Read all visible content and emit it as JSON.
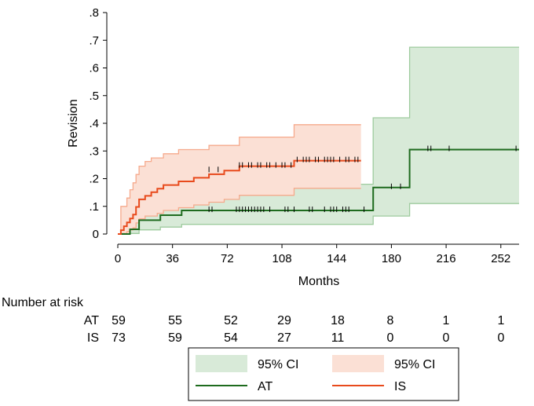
{
  "chart_data": {
    "type": "line",
    "subtype": "kaplan-meier-step",
    "ylabel": "Revision",
    "xlabel": "Months",
    "ylim": [
      0,
      0.8
    ],
    "xlim": [
      0,
      264
    ],
    "x_ticks": [
      0,
      36,
      72,
      108,
      144,
      180,
      216,
      252
    ],
    "y_ticks": [
      0,
      0.1,
      0.2,
      0.3,
      0.4,
      0.5,
      0.6,
      0.7,
      0.8
    ],
    "y_tick_labels": [
      "0",
      ".1",
      ".2",
      ".3",
      ".4",
      ".5",
      ".6",
      ".7",
      ".8"
    ],
    "series": [
      {
        "name": "AT",
        "color": "#1e6b1e",
        "ci_fill": "#d8ead8",
        "ci_line": "#9ecb9e",
        "estimate": [
          [
            0,
            0
          ],
          [
            8,
            0
          ],
          [
            8,
            0.017
          ],
          [
            14,
            0.017
          ],
          [
            14,
            0.05
          ],
          [
            28,
            0.05
          ],
          [
            28,
            0.068
          ],
          [
            42,
            0.068
          ],
          [
            42,
            0.085
          ],
          [
            168,
            0.085
          ],
          [
            168,
            0.168
          ],
          [
            192,
            0.168
          ],
          [
            192,
            0.305
          ],
          [
            264,
            0.305
          ]
        ],
        "ci_upper": [
          [
            0,
            0
          ],
          [
            8,
            0
          ],
          [
            8,
            0.08
          ],
          [
            14,
            0.08
          ],
          [
            14,
            0.135
          ],
          [
            28,
            0.135
          ],
          [
            28,
            0.16
          ],
          [
            42,
            0.16
          ],
          [
            42,
            0.18
          ],
          [
            168,
            0.18
          ],
          [
            168,
            0.42
          ],
          [
            192,
            0.42
          ],
          [
            192,
            0.675
          ],
          [
            264,
            0.675
          ]
        ],
        "ci_lower": [
          [
            0,
            0
          ],
          [
            8,
            0
          ],
          [
            8,
            0.002
          ],
          [
            14,
            0.002
          ],
          [
            14,
            0.015
          ],
          [
            28,
            0.015
          ],
          [
            28,
            0.025
          ],
          [
            42,
            0.025
          ],
          [
            42,
            0.035
          ],
          [
            168,
            0.035
          ],
          [
            168,
            0.065
          ],
          [
            192,
            0.065
          ],
          [
            192,
            0.11
          ],
          [
            264,
            0.11
          ]
        ],
        "censor_marks": [
          [
            60,
            0.085
          ],
          [
            62,
            0.085
          ],
          [
            78,
            0.085
          ],
          [
            80,
            0.085
          ],
          [
            82,
            0.085
          ],
          [
            84,
            0.085
          ],
          [
            86,
            0.085
          ],
          [
            88,
            0.085
          ],
          [
            90,
            0.085
          ],
          [
            92,
            0.085
          ],
          [
            94,
            0.085
          ],
          [
            96,
            0.085
          ],
          [
            100,
            0.085
          ],
          [
            110,
            0.085
          ],
          [
            112,
            0.085
          ],
          [
            116,
            0.085
          ],
          [
            126,
            0.085
          ],
          [
            128,
            0.085
          ],
          [
            136,
            0.085
          ],
          [
            140,
            0.085
          ],
          [
            142,
            0.085
          ],
          [
            144,
            0.085
          ],
          [
            148,
            0.085
          ],
          [
            150,
            0.085
          ],
          [
            152,
            0.085
          ],
          [
            162,
            0.085
          ],
          [
            180,
            0.168
          ],
          [
            186,
            0.168
          ],
          [
            204,
            0.305
          ],
          [
            206,
            0.305
          ],
          [
            218,
            0.305
          ],
          [
            262,
            0.305
          ]
        ],
        "risk": [
          59,
          55,
          52,
          29,
          18,
          8,
          1,
          1
        ]
      },
      {
        "name": "IS",
        "color": "#e84a1c",
        "ci_fill": "#fbe0d5",
        "ci_line": "#f6a98c",
        "estimate": [
          [
            0,
            0
          ],
          [
            2,
            0
          ],
          [
            2,
            0.014
          ],
          [
            4,
            0.014
          ],
          [
            4,
            0.028
          ],
          [
            6,
            0.028
          ],
          [
            6,
            0.042
          ],
          [
            8,
            0.042
          ],
          [
            8,
            0.056
          ],
          [
            10,
            0.056
          ],
          [
            10,
            0.07
          ],
          [
            12,
            0.07
          ],
          [
            12,
            0.098
          ],
          [
            14,
            0.098
          ],
          [
            14,
            0.125
          ],
          [
            18,
            0.125
          ],
          [
            18,
            0.138
          ],
          [
            22,
            0.138
          ],
          [
            22,
            0.151
          ],
          [
            26,
            0.151
          ],
          [
            26,
            0.164
          ],
          [
            30,
            0.164
          ],
          [
            30,
            0.177
          ],
          [
            40,
            0.177
          ],
          [
            40,
            0.19
          ],
          [
            50,
            0.19
          ],
          [
            50,
            0.203
          ],
          [
            60,
            0.203
          ],
          [
            60,
            0.216
          ],
          [
            70,
            0.216
          ],
          [
            70,
            0.229
          ],
          [
            80,
            0.229
          ],
          [
            80,
            0.245
          ],
          [
            116,
            0.245
          ],
          [
            116,
            0.265
          ],
          [
            160,
            0.265
          ]
        ],
        "ci_upper": [
          [
            0,
            0
          ],
          [
            2,
            0
          ],
          [
            2,
            0.1
          ],
          [
            6,
            0.1
          ],
          [
            6,
            0.13
          ],
          [
            8,
            0.13
          ],
          [
            8,
            0.16
          ],
          [
            10,
            0.16
          ],
          [
            10,
            0.185
          ],
          [
            12,
            0.185
          ],
          [
            12,
            0.215
          ],
          [
            14,
            0.215
          ],
          [
            14,
            0.245
          ],
          [
            18,
            0.245
          ],
          [
            18,
            0.262
          ],
          [
            22,
            0.262
          ],
          [
            22,
            0.275
          ],
          [
            30,
            0.275
          ],
          [
            30,
            0.29
          ],
          [
            40,
            0.29
          ],
          [
            40,
            0.305
          ],
          [
            60,
            0.305
          ],
          [
            60,
            0.32
          ],
          [
            80,
            0.32
          ],
          [
            80,
            0.35
          ],
          [
            116,
            0.35
          ],
          [
            116,
            0.395
          ],
          [
            160,
            0.395
          ]
        ],
        "ci_lower": [
          [
            0,
            0
          ],
          [
            2,
            0
          ],
          [
            2,
            0.002
          ],
          [
            6,
            0.002
          ],
          [
            6,
            0.008
          ],
          [
            8,
            0.008
          ],
          [
            8,
            0.015
          ],
          [
            10,
            0.015
          ],
          [
            10,
            0.022
          ],
          [
            12,
            0.022
          ],
          [
            12,
            0.04
          ],
          [
            14,
            0.04
          ],
          [
            14,
            0.055
          ],
          [
            18,
            0.055
          ],
          [
            18,
            0.065
          ],
          [
            26,
            0.065
          ],
          [
            26,
            0.075
          ],
          [
            30,
            0.075
          ],
          [
            30,
            0.085
          ],
          [
            40,
            0.085
          ],
          [
            40,
            0.095
          ],
          [
            50,
            0.095
          ],
          [
            50,
            0.105
          ],
          [
            60,
            0.105
          ],
          [
            60,
            0.115
          ],
          [
            70,
            0.115
          ],
          [
            70,
            0.125
          ],
          [
            80,
            0.125
          ],
          [
            80,
            0.14
          ],
          [
            116,
            0.14
          ],
          [
            116,
            0.165
          ],
          [
            160,
            0.165
          ]
        ],
        "censor_marks": [
          [
            60,
            0.229
          ],
          [
            66,
            0.229
          ],
          [
            80,
            0.245
          ],
          [
            82,
            0.245
          ],
          [
            86,
            0.245
          ],
          [
            88,
            0.245
          ],
          [
            92,
            0.245
          ],
          [
            94,
            0.245
          ],
          [
            98,
            0.245
          ],
          [
            100,
            0.245
          ],
          [
            104,
            0.245
          ],
          [
            108,
            0.245
          ],
          [
            110,
            0.245
          ],
          [
            114,
            0.245
          ],
          [
            118,
            0.265
          ],
          [
            122,
            0.265
          ],
          [
            124,
            0.265
          ],
          [
            126,
            0.265
          ],
          [
            130,
            0.265
          ],
          [
            132,
            0.265
          ],
          [
            136,
            0.265
          ],
          [
            138,
            0.265
          ],
          [
            140,
            0.265
          ],
          [
            142,
            0.265
          ],
          [
            146,
            0.265
          ],
          [
            150,
            0.265
          ],
          [
            152,
            0.265
          ],
          [
            156,
            0.265
          ],
          [
            158,
            0.265
          ]
        ],
        "risk": [
          73,
          59,
          54,
          27,
          11,
          0,
          0,
          0
        ]
      }
    ],
    "risk_table": {
      "title": "Number at risk",
      "times": [
        0,
        36,
        72,
        108,
        144,
        180,
        216,
        252
      ]
    },
    "legend": {
      "position": "bottom",
      "entries": [
        {
          "label": "95% CI",
          "kind": "area",
          "series": "AT"
        },
        {
          "label": "95% CI",
          "kind": "area",
          "series": "IS"
        },
        {
          "label": "AT",
          "kind": "line",
          "series": "AT"
        },
        {
          "label": "IS",
          "kind": "line",
          "series": "IS"
        }
      ]
    }
  }
}
